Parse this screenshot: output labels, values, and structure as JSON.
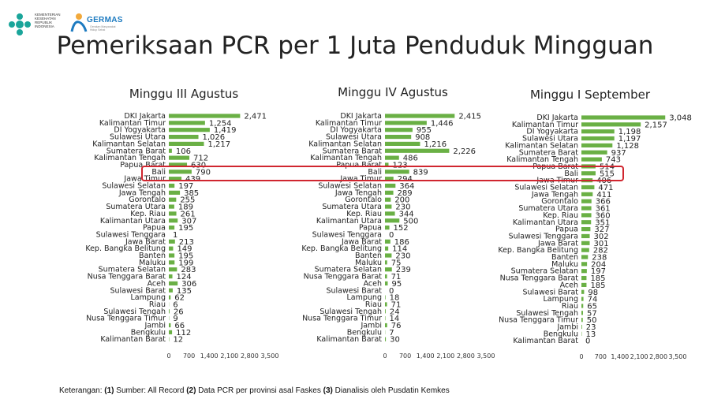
{
  "page": {
    "title": "Pemeriksaan PCR per 1 Juta Penduduk Mingguan",
    "logo_ministry": "KEMENTERIAN KESEHATAN REPUBLIK INDONESIA",
    "logo_germas": "GERMAS",
    "logo_germas_sub": "Gerakan Masyarakat Hidup Sehat",
    "footnote": {
      "prefix": "Keterangan: ",
      "n1": "(1)",
      "t1": " Sumber: All Record ",
      "n2": "(2)",
      "t2": " Data PCR per provinsi asal Faskes ",
      "n3": "(3)",
      "t3": " Dianalisis oleh Pusdatin Kemkes"
    }
  },
  "colors": {
    "bar": "#6ab045",
    "highlight": "#d0262f",
    "text": "#222222"
  },
  "chart_data": [
    {
      "type": "bar",
      "orientation": "horizontal",
      "title": "Minggu III Agustus",
      "xlim": [
        0,
        3500
      ],
      "xticks": [
        "0",
        "700",
        "1,400",
        "2,100",
        "2,800",
        "3,500"
      ],
      "categories": [
        "DKI Jakarta",
        "Kalimantan Timur",
        "DI Yogyakarta",
        "Sulawesi Utara",
        "Kalimantan Selatan",
        "Sumatera Barat",
        "Kalimantan Tengah",
        "Papua Barat",
        "Bali",
        "Jawa Timur",
        "Sulawesi Selatan",
        "Jawa Tengah",
        "Gorontalo",
        "Sumatera Utara",
        "Kep. Riau",
        "Kalimantan Utara",
        "Papua",
        "Sulawesi Tenggara",
        "Jawa Barat",
        "Kep. Bangka Belitung",
        "Banten",
        "Maluku",
        "Sumatera Selatan",
        "Nusa Tenggara Barat",
        "Aceh",
        "Sulawesi Barat",
        "Lampung",
        "Riau",
        "Sulawesi Tengah",
        "Nusa Tenggara Timur",
        "Jambi",
        "Bengkulu",
        "Kalimantan Barat"
      ],
      "values": [
        2471,
        1254,
        1419,
        1026,
        1217,
        106,
        712,
        630,
        790,
        439,
        197,
        385,
        255,
        189,
        261,
        307,
        195,
        1,
        213,
        149,
        195,
        199,
        283,
        124,
        306,
        135,
        62,
        6,
        26,
        9,
        66,
        112,
        12
      ],
      "labels": [
        "2,471",
        "1,254",
        "1,419",
        "1,026",
        "1,217",
        "106",
        "712",
        "630",
        "790",
        "439",
        "197",
        "385",
        "255",
        "189",
        "261",
        "307",
        "195",
        "1",
        "213",
        "149",
        "195",
        "199",
        "283",
        "124",
        "306",
        "135",
        "62",
        "6",
        "26",
        "9",
        "66",
        "112",
        "12"
      ]
    },
    {
      "type": "bar",
      "orientation": "horizontal",
      "title": "Minggu IV Agustus",
      "xlim": [
        0,
        3500
      ],
      "xticks": [
        "0",
        "700",
        "1,400",
        "2,100",
        "2,800",
        "3,500"
      ],
      "categories": [
        "DKI Jakarta",
        "Kalimantan Timur",
        "DI Yogyakarta",
        "Sulawesi Utara",
        "Kalimantan Selatan",
        "Sumatera Barat",
        "Kalimantan Tengah",
        "Papua Barat",
        "Bali",
        "Jawa Timur",
        "Sulawesi Selatan",
        "Jawa Tengah",
        "Gorontalo",
        "Sumatera Utara",
        "Kep. Riau",
        "Kalimantan Utara",
        "Papua",
        "Sulawesi Tenggara",
        "Jawa Barat",
        "Kep. Bangka Belitung",
        "Banten",
        "Maluku",
        "Sumatera Selatan",
        "Nusa Tenggara Barat",
        "Aceh",
        "Sulawesi Barat",
        "Lampung",
        "Riau",
        "Sulawesi Tengah",
        "Nusa Tenggara Timur",
        "Jambi",
        "Bengkulu",
        "Kalimantan Barat"
      ],
      "values": [
        2415,
        1446,
        955,
        908,
        1216,
        2226,
        486,
        123,
        839,
        294,
        364,
        289,
        200,
        230,
        344,
        500,
        152,
        0,
        186,
        114,
        230,
        75,
        239,
        71,
        95,
        0,
        18,
        71,
        24,
        14,
        76,
        7,
        30
      ],
      "labels": [
        "2,415",
        "1,446",
        "955",
        "908",
        "1,216",
        "2,226",
        "486",
        "123",
        "839",
        "294",
        "364",
        "289",
        "200",
        "230",
        "344",
        "500",
        "152",
        "0",
        "186",
        "114",
        "230",
        "75",
        "239",
        "71",
        "95",
        "0",
        "18",
        "71",
        "24",
        "14",
        "76",
        "7",
        "30"
      ]
    },
    {
      "type": "bar",
      "orientation": "horizontal",
      "title": "Minggu I September",
      "xlim": [
        0,
        3500
      ],
      "xticks": [
        "0",
        "700",
        "1,400",
        "2,100",
        "2,800",
        "3,500"
      ],
      "categories": [
        "DKI Jakarta",
        "Kalimantan Timur",
        "DI Yogyakarta",
        "Sulawesi Utara",
        "Kalimantan Selatan",
        "Sumatera Barat",
        "Kalimantan Tengah",
        "Papua Barat",
        "Bali",
        "Jawa Timur",
        "Sulawesi Selatan",
        "Jawa Tengah",
        "Gorontalo",
        "Sumatera Utara",
        "Kep. Riau",
        "Kalimantan Utara",
        "Papua",
        "Sulawesi Tenggara",
        "Jawa Barat",
        "Kep. Bangka Belitung",
        "Banten",
        "Maluku",
        "Sumatera Selatan",
        "Nusa Tenggara Barat",
        "Aceh",
        "Sulawesi Barat",
        "Lampung",
        "Riau",
        "Sulawesi Tengah",
        "Nusa Tenggara Timur",
        "Jambi",
        "Bengkulu",
        "Kalimantan Barat"
      ],
      "values": [
        3048,
        2157,
        1198,
        1197,
        1128,
        937,
        743,
        514,
        515,
        406,
        471,
        411,
        366,
        361,
        360,
        351,
        327,
        302,
        301,
        282,
        238,
        204,
        197,
        185,
        185,
        98,
        74,
        65,
        57,
        50,
        23,
        13,
        0
      ],
      "labels": [
        "3,048",
        "2,157",
        "1,198",
        "1,197",
        "1,128",
        "937",
        "743",
        "514",
        "515",
        "406",
        "471",
        "411",
        "366",
        "361",
        "360",
        "351",
        "327",
        "302",
        "301",
        "282",
        "238",
        "204",
        "197",
        "185",
        "185",
        "98",
        "74",
        "65",
        "57",
        "50",
        "23",
        "13",
        "0"
      ]
    }
  ]
}
